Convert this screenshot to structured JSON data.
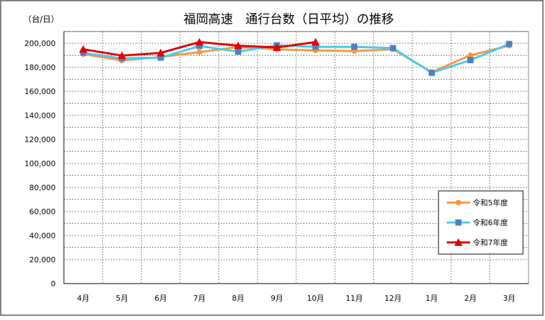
{
  "chart_data": {
    "type": "line",
    "title": "福岡高速　通行台数（日平均）の推移",
    "ylabel": "（台/日）",
    "ylim": [
      0,
      200000
    ],
    "yticks": [
      "0",
      "20,000",
      "40,000",
      "60,000",
      "80,000",
      "100,000",
      "120,000",
      "140,000",
      "160,000",
      "180,000",
      "200,000"
    ],
    "categories": [
      "4月",
      "5月",
      "6月",
      "7月",
      "8月",
      "9月",
      "10月",
      "11月",
      "12月",
      "1月",
      "2月",
      "3月"
    ],
    "grid": true,
    "legend_position": "right",
    "series": [
      {
        "name": "令和5年度",
        "color": "#F79646",
        "marker": "circle",
        "values": [
          191000,
          185700,
          188600,
          192600,
          197000,
          195000,
          194000,
          193500,
          195000,
          176000,
          190000,
          198000
        ]
      },
      {
        "name": "令和6年度",
        "color": "#4BC8F0",
        "marker_color": "#4F81BD",
        "marker": "square",
        "values": [
          192000,
          187400,
          188000,
          197700,
          193000,
          198300,
          197000,
          197000,
          196000,
          175400,
          186000,
          199400
        ]
      },
      {
        "name": "令和7年度",
        "color": "#E00000",
        "marker": "triangle",
        "values": [
          195000,
          189700,
          192000,
          201000,
          198000,
          196500,
          201000,
          null,
          null,
          null,
          null,
          null
        ]
      }
    ]
  }
}
